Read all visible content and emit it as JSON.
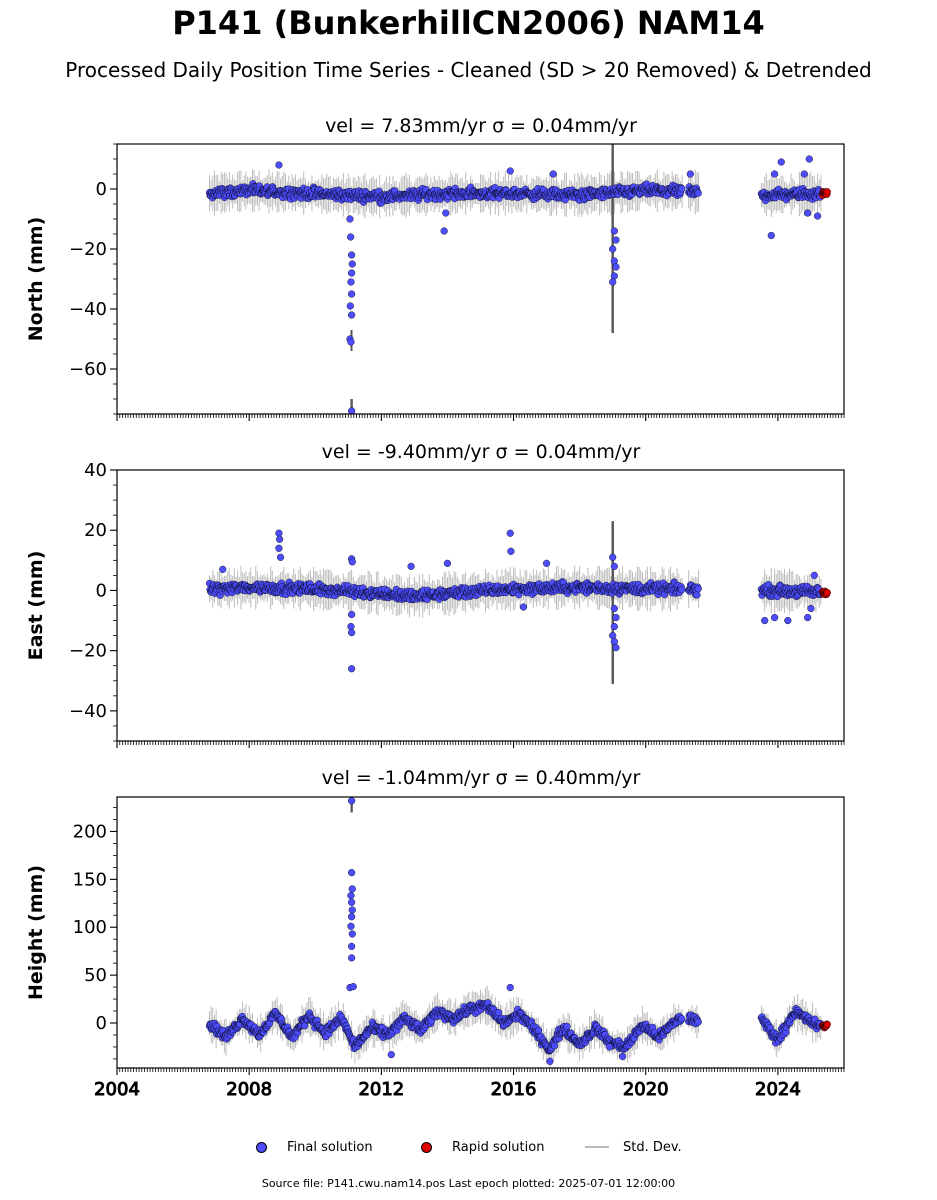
{
  "title": "P141 (BunkerhillCN2006) NAM14",
  "subtitle": "Processed Daily Position Time Series - Cleaned (SD > 20 Removed) & Detrended",
  "footer": "Source file: P141.cwu.nam14.pos  Last epoch plotted: 2025-07-01 12:00:00",
  "colors": {
    "final": "#4d4dff",
    "rapid": "#e00000",
    "std": "#bbbbbb",
    "edge": "#000000"
  },
  "chart_data": [
    {
      "type": "scatter",
      "title": "vel = 7.83mm/yr   σ = 0.04mm/yr",
      "ylabel": "North (mm)",
      "xlim": [
        2004.0,
        2026.0
      ],
      "ylim": [
        -75,
        15
      ],
      "yticks": [
        0,
        -20,
        -40,
        -60
      ],
      "ytick_labels": [
        "0",
        "−20",
        "−40",
        "−60"
      ],
      "xticks": [
        2004,
        2008,
        2012,
        2016,
        2020,
        2024
      ],
      "show_xtick_labels": false,
      "series": [
        {
          "name": "Final solution",
          "segments": [
            [
              2006.8,
              2021.1
            ],
            [
              2021.3,
              2021.6
            ],
            [
              2023.5,
              2025.3
            ]
          ],
          "baseline": [
            [
              2006.8,
              -1.5
            ],
            [
              2008.0,
              -0.5
            ],
            [
              2010.0,
              -1.5
            ],
            [
              2012.0,
              -2.5
            ],
            [
              2014.0,
              -1.5
            ],
            [
              2016.0,
              -1.5
            ],
            [
              2018.0,
              -2.0
            ],
            [
              2020.0,
              -0.5
            ],
            [
              2021.5,
              -1.0
            ],
            [
              2023.5,
              -2.0
            ],
            [
              2025.3,
              -1.5
            ]
          ],
          "spread": 2.5,
          "points": [
            {
              "x": 2008.9,
              "y": 8
            },
            {
              "x": 2011.05,
              "y": -10
            },
            {
              "x": 2011.07,
              "y": -16
            },
            {
              "x": 2011.1,
              "y": -22
            },
            {
              "x": 2011.12,
              "y": -25
            },
            {
              "x": 2011.1,
              "y": -28
            },
            {
              "x": 2011.08,
              "y": -31
            },
            {
              "x": 2011.1,
              "y": -35
            },
            {
              "x": 2011.06,
              "y": -39
            },
            {
              "x": 2011.1,
              "y": -42
            },
            {
              "x": 2011.05,
              "y": -50
            },
            {
              "x": 2011.08,
              "y": -51
            },
            {
              "x": 2011.1,
              "y": -74
            },
            {
              "x": 2013.9,
              "y": -14
            },
            {
              "x": 2013.95,
              "y": -8
            },
            {
              "x": 2015.9,
              "y": 6
            },
            {
              "x": 2017.2,
              "y": 5
            },
            {
              "x": 2019.05,
              "y": -14
            },
            {
              "x": 2019.1,
              "y": -17
            },
            {
              "x": 2019.0,
              "y": -20
            },
            {
              "x": 2019.05,
              "y": -24
            },
            {
              "x": 2019.1,
              "y": -26
            },
            {
              "x": 2019.05,
              "y": -29
            },
            {
              "x": 2019.0,
              "y": -31
            },
            {
              "x": 2021.35,
              "y": 5
            },
            {
              "x": 2023.8,
              "y": -15.5
            },
            {
              "x": 2023.9,
              "y": 5
            },
            {
              "x": 2024.1,
              "y": 9
            },
            {
              "x": 2024.95,
              "y": 10
            },
            {
              "x": 2024.8,
              "y": 5
            },
            {
              "x": 2025.2,
              "y": -9
            },
            {
              "x": 2024.9,
              "y": -8
            }
          ]
        },
        {
          "name": "Rapid solution",
          "segments": [
            [
              2025.35,
              2025.5
            ]
          ],
          "baseline": [
            [
              2025.35,
              -1.5
            ],
            [
              2025.5,
              -1.5
            ]
          ],
          "spread": 1.2,
          "points": []
        }
      ],
      "std_spikes": [
        {
          "x": 2019.0,
          "ymin": -48,
          "ymax": 15
        },
        {
          "x": 2011.1,
          "ymin": -76,
          "ymax": -70
        },
        {
          "x": 2011.1,
          "ymin": -54,
          "ymax": -47
        }
      ]
    },
    {
      "type": "scatter",
      "title": "vel = -9.40mm/yr   σ = 0.04mm/yr",
      "ylabel": "East (mm)",
      "xlim": [
        2004.0,
        2026.0
      ],
      "ylim": [
        -50,
        40
      ],
      "yticks": [
        40,
        20,
        0,
        -20,
        -40
      ],
      "ytick_labels": [
        "40",
        "20",
        "0",
        "−20",
        "−40"
      ],
      "xticks": [
        2004,
        2008,
        2012,
        2016,
        2020,
        2024
      ],
      "show_xtick_labels": false,
      "series": [
        {
          "name": "Final solution",
          "segments": [
            [
              2006.8,
              2021.1
            ],
            [
              2021.3,
              2021.6
            ],
            [
              2023.5,
              2025.3
            ]
          ],
          "baseline": [
            [
              2006.8,
              0.5
            ],
            [
              2008.0,
              1.0
            ],
            [
              2010.0,
              0.5
            ],
            [
              2012.0,
              -1.0
            ],
            [
              2013.0,
              -2.0
            ],
            [
              2014.0,
              -1.0
            ],
            [
              2016.0,
              0.5
            ],
            [
              2018.0,
              1.0
            ],
            [
              2020.0,
              0.5
            ],
            [
              2021.5,
              0.5
            ],
            [
              2023.5,
              0.0
            ],
            [
              2025.3,
              -0.5
            ]
          ],
          "spread": 2.5,
          "points": [
            {
              "x": 2008.9,
              "y": 19
            },
            {
              "x": 2008.92,
              "y": 17
            },
            {
              "x": 2008.9,
              "y": 14
            },
            {
              "x": 2008.95,
              "y": 11
            },
            {
              "x": 2007.2,
              "y": 7
            },
            {
              "x": 2011.1,
              "y": 10.5
            },
            {
              "x": 2011.12,
              "y": 9.5
            },
            {
              "x": 2011.1,
              "y": -8
            },
            {
              "x": 2011.08,
              "y": -12
            },
            {
              "x": 2011.1,
              "y": -14
            },
            {
              "x": 2011.1,
              "y": -26
            },
            {
              "x": 2012.9,
              "y": 8
            },
            {
              "x": 2014.0,
              "y": 9
            },
            {
              "x": 2015.9,
              "y": 19
            },
            {
              "x": 2015.92,
              "y": 13
            },
            {
              "x": 2016.3,
              "y": -5.5
            },
            {
              "x": 2017.0,
              "y": 9
            },
            {
              "x": 2019.0,
              "y": 11
            },
            {
              "x": 2019.05,
              "y": 8
            },
            {
              "x": 2019.05,
              "y": -6
            },
            {
              "x": 2019.1,
              "y": -9
            },
            {
              "x": 2019.05,
              "y": -12
            },
            {
              "x": 2019.0,
              "y": -15
            },
            {
              "x": 2019.05,
              "y": -17
            },
            {
              "x": 2019.1,
              "y": -19
            },
            {
              "x": 2023.6,
              "y": -10
            },
            {
              "x": 2023.9,
              "y": -9
            },
            {
              "x": 2024.3,
              "y": -10
            },
            {
              "x": 2024.9,
              "y": -9
            },
            {
              "x": 2025.0,
              "y": -6
            },
            {
              "x": 2025.1,
              "y": 5
            }
          ]
        },
        {
          "name": "Rapid solution",
          "segments": [
            [
              2025.35,
              2025.5
            ]
          ],
          "baseline": [
            [
              2025.35,
              -0.8
            ],
            [
              2025.5,
              -0.8
            ]
          ],
          "spread": 1.2,
          "points": []
        }
      ],
      "std_spikes": [
        {
          "x": 2019.0,
          "ymin": -31,
          "ymax": 23
        }
      ]
    },
    {
      "type": "scatter",
      "title": "vel = -1.04mm/yr   σ = 0.40mm/yr",
      "ylabel": "Height (mm)",
      "xlim": [
        2004.0,
        2026.0
      ],
      "ylim": [
        -47,
        236
      ],
      "yticks": [
        200,
        150,
        100,
        50,
        0
      ],
      "ytick_labels": [
        "200",
        "150",
        "100",
        "50",
        "0"
      ],
      "xticks": [
        2004,
        2008,
        2012,
        2016,
        2020,
        2024
      ],
      "xtick_labels": [
        "2004",
        "2008",
        "2012",
        "2016",
        "2020",
        "2024"
      ],
      "show_xtick_labels": true,
      "series": [
        {
          "name": "Final solution",
          "segments": [
            [
              2006.8,
              2021.1
            ],
            [
              2021.3,
              2021.6
            ],
            [
              2023.5,
              2025.3
            ]
          ],
          "baseline": [
            [
              2006.8,
              0
            ],
            [
              2007.3,
              -15
            ],
            [
              2007.8,
              5
            ],
            [
              2008.3,
              -12
            ],
            [
              2008.8,
              10
            ],
            [
              2009.3,
              -15
            ],
            [
              2009.8,
              8
            ],
            [
              2010.3,
              -10
            ],
            [
              2010.8,
              5
            ],
            [
              2011.2,
              -25
            ],
            [
              2011.7,
              -5
            ],
            [
              2012.2,
              -12
            ],
            [
              2012.7,
              5
            ],
            [
              2013.2,
              -8
            ],
            [
              2013.7,
              12
            ],
            [
              2014.2,
              5
            ],
            [
              2014.7,
              15
            ],
            [
              2015.2,
              18
            ],
            [
              2015.7,
              0
            ],
            [
              2016.2,
              10
            ],
            [
              2016.7,
              -10
            ],
            [
              2017.1,
              -28
            ],
            [
              2017.5,
              -5
            ],
            [
              2018.0,
              -22
            ],
            [
              2018.5,
              -5
            ],
            [
              2018.9,
              -20
            ],
            [
              2019.4,
              -25
            ],
            [
              2019.9,
              -2
            ],
            [
              2020.4,
              -15
            ],
            [
              2020.9,
              2
            ],
            [
              2021.1,
              5
            ],
            [
              2021.4,
              5
            ],
            [
              2021.6,
              0
            ],
            [
              2023.5,
              5
            ],
            [
              2024.0,
              -18
            ],
            [
              2024.5,
              12
            ],
            [
              2025.3,
              -5
            ]
          ],
          "spread": 7,
          "points": [
            {
              "x": 2011.1,
              "y": 232
            },
            {
              "x": 2011.1,
              "y": 157
            },
            {
              "x": 2011.12,
              "y": 140
            },
            {
              "x": 2011.08,
              "y": 133
            },
            {
              "x": 2011.1,
              "y": 126
            },
            {
              "x": 2011.12,
              "y": 118
            },
            {
              "x": 2011.1,
              "y": 111
            },
            {
              "x": 2011.08,
              "y": 101
            },
            {
              "x": 2011.12,
              "y": 93
            },
            {
              "x": 2011.1,
              "y": 80
            },
            {
              "x": 2011.1,
              "y": 68
            },
            {
              "x": 2011.05,
              "y": 37
            },
            {
              "x": 2011.15,
              "y": 38
            },
            {
              "x": 2012.3,
              "y": -33
            },
            {
              "x": 2015.9,
              "y": 37
            },
            {
              "x": 2017.1,
              "y": -40
            },
            {
              "x": 2018.9,
              "y": -25
            },
            {
              "x": 2019.3,
              "y": -35
            }
          ]
        },
        {
          "name": "Rapid solution",
          "segments": [
            [
              2025.35,
              2025.5
            ]
          ],
          "baseline": [
            [
              2025.35,
              -3
            ],
            [
              2025.5,
              -3
            ]
          ],
          "spread": 4,
          "points": []
        }
      ],
      "std_spikes": [
        {
          "x": 2011.1,
          "ymin": 220,
          "ymax": 236
        }
      ]
    }
  ],
  "legend": {
    "final_label": "Final solution",
    "rapid_label": "Rapid solution",
    "std_label": "Std. Dev."
  }
}
